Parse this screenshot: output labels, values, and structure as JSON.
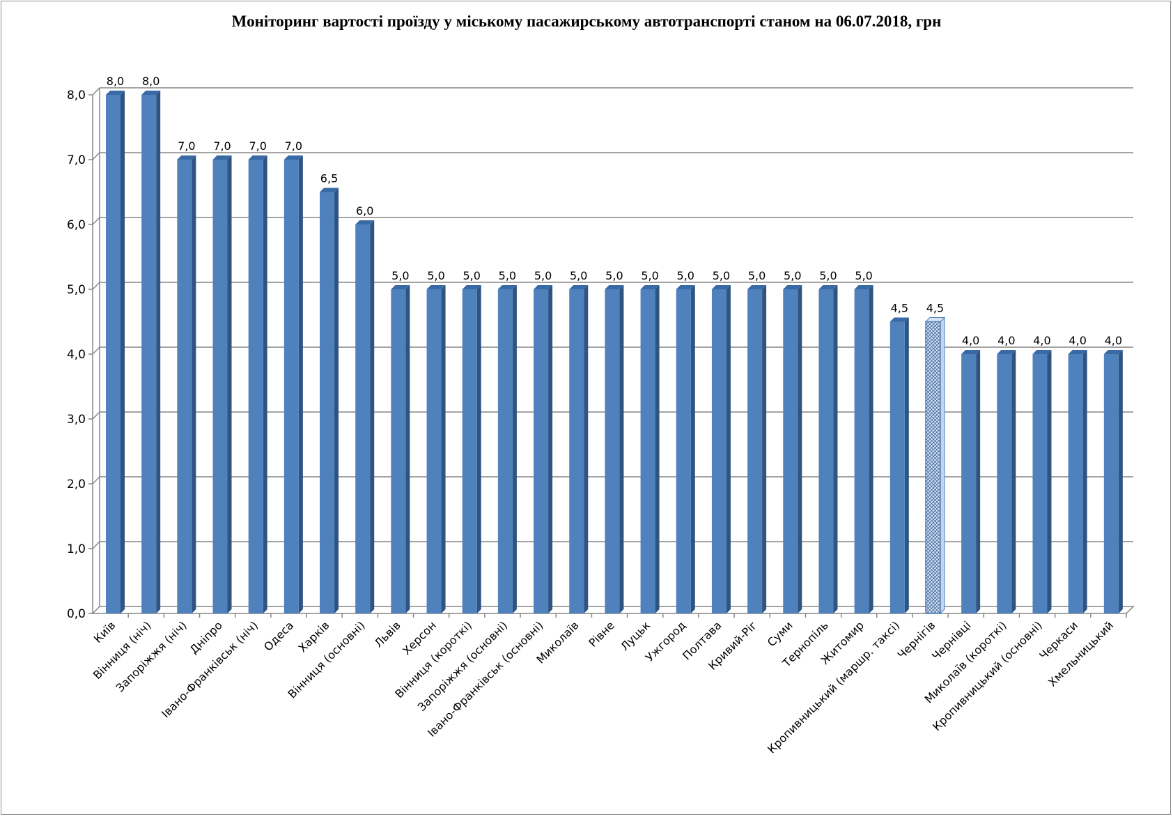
{
  "chart_data": {
    "type": "bar",
    "title": "Моніторинг вартості проїзду у міському пасажирському автотранспорті станом на 06.07.2018, грн",
    "xlabel": "",
    "ylabel": "",
    "ylim": [
      0,
      8
    ],
    "yticks": [
      "0,0",
      "1,0",
      "2,0",
      "3,0",
      "4,0",
      "5,0",
      "6,0",
      "7,0",
      "8,0"
    ],
    "grid": true,
    "legend": "none",
    "style": "3d-columns",
    "bar_color": "#4f81bd",
    "bar_side_color": "#2e5482",
    "bar_top_color": "#3a6aa6",
    "highlight_category": "Чернігів",
    "highlight_color": "#dbe5f1",
    "gridline_color": "#868686",
    "categories": [
      "Київ",
      "Вінниця (ніч)",
      "Запоріжжя (ніч)",
      "Дніпро",
      "Івано-Франківськ (ніч)",
      "Одеса",
      "Харків",
      "Вінниця (основні)",
      "Львів",
      "Херсон",
      "Вінниця (короткі)",
      "Запоріжжя (основні)",
      "Івано-Франківськ (основні)",
      "Миколаїв",
      "Рівне",
      "Луцьк",
      "Ужгород",
      "Полтава",
      "Кривий-Ріг",
      "Суми",
      "Тернопіль",
      "Житомир",
      "Кропивницький (маршр. таксі)",
      "Чернігів",
      "Чернівці",
      "Миколаїв (короткі)",
      "Кропивницький (основні)",
      "Черкаси",
      "Хмельницький"
    ],
    "values": [
      8.0,
      8.0,
      7.0,
      7.0,
      7.0,
      7.0,
      6.5,
      6.0,
      5.0,
      5.0,
      5.0,
      5.0,
      5.0,
      5.0,
      5.0,
      5.0,
      5.0,
      5.0,
      5.0,
      5.0,
      5.0,
      5.0,
      4.5,
      4.5,
      4.0,
      4.0,
      4.0,
      4.0,
      4.0
    ],
    "value_labels": [
      "8,0",
      "8,0",
      "7,0",
      "7,0",
      "7,0",
      "7,0",
      "6,5",
      "6,0",
      "5,0",
      "5,0",
      "5,0",
      "5,0",
      "5,0",
      "5,0",
      "5,0",
      "5,0",
      "5,0",
      "5,0",
      "5,0",
      "5,0",
      "5,0",
      "5,0",
      "4,5",
      "4,5",
      "4,0",
      "4,0",
      "4,0",
      "4,0",
      "4,0"
    ]
  }
}
